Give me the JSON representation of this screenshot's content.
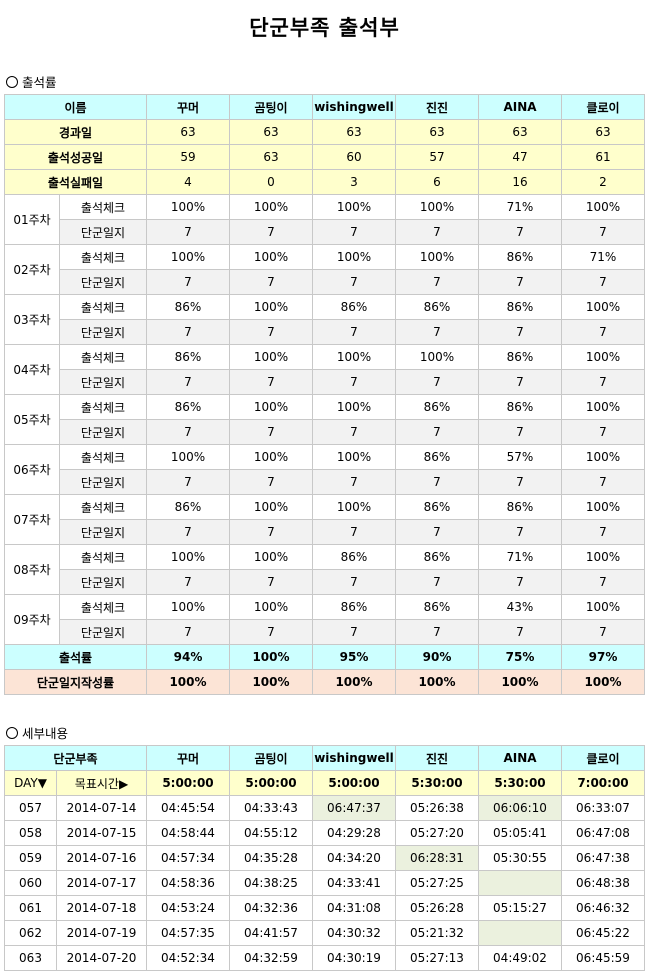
{
  "title": "단군부족 출석부",
  "section1": "출석률",
  "section2": "세부내용",
  "attendance": {
    "name_header": "이름",
    "members": [
      "꾸머",
      "곰팅이",
      "wishingwell",
      "진진",
      "AINA",
      "클로이"
    ],
    "summary": [
      {
        "label": "경과일",
        "values": [
          "63",
          "63",
          "63",
          "63",
          "63",
          "63"
        ]
      },
      {
        "label": "출석성공일",
        "values": [
          "59",
          "63",
          "60",
          "57",
          "47",
          "61"
        ]
      },
      {
        "label": "출석실패일",
        "values": [
          "4",
          "0",
          "3",
          "6",
          "16",
          "2"
        ]
      }
    ],
    "check_label": "출석체크",
    "diary_label": "단군일지",
    "weeks": [
      {
        "week": "01주차",
        "check": [
          "100%",
          "100%",
          "100%",
          "100%",
          "71%",
          "100%"
        ],
        "diary": [
          "7",
          "7",
          "7",
          "7",
          "7",
          "7"
        ]
      },
      {
        "week": "02주차",
        "check": [
          "100%",
          "100%",
          "100%",
          "100%",
          "86%",
          "71%"
        ],
        "diary": [
          "7",
          "7",
          "7",
          "7",
          "7",
          "7"
        ]
      },
      {
        "week": "03주차",
        "check": [
          "86%",
          "100%",
          "86%",
          "86%",
          "86%",
          "100%"
        ],
        "diary": [
          "7",
          "7",
          "7",
          "7",
          "7",
          "7"
        ]
      },
      {
        "week": "04주차",
        "check": [
          "86%",
          "100%",
          "100%",
          "100%",
          "86%",
          "100%"
        ],
        "diary": [
          "7",
          "7",
          "7",
          "7",
          "7",
          "7"
        ]
      },
      {
        "week": "05주차",
        "check": [
          "86%",
          "100%",
          "100%",
          "86%",
          "86%",
          "100%"
        ],
        "diary": [
          "7",
          "7",
          "7",
          "7",
          "7",
          "7"
        ]
      },
      {
        "week": "06주차",
        "check": [
          "100%",
          "100%",
          "100%",
          "86%",
          "57%",
          "100%"
        ],
        "diary": [
          "7",
          "7",
          "7",
          "7",
          "7",
          "7"
        ]
      },
      {
        "week": "07주차",
        "check": [
          "86%",
          "100%",
          "100%",
          "86%",
          "86%",
          "100%"
        ],
        "diary": [
          "7",
          "7",
          "7",
          "7",
          "7",
          "7"
        ]
      },
      {
        "week": "08주차",
        "check": [
          "100%",
          "100%",
          "86%",
          "86%",
          "71%",
          "100%"
        ],
        "diary": [
          "7",
          "7",
          "7",
          "7",
          "7",
          "7"
        ]
      },
      {
        "week": "09주차",
        "check": [
          "100%",
          "100%",
          "86%",
          "86%",
          "43%",
          "100%"
        ],
        "diary": [
          "7",
          "7",
          "7",
          "7",
          "7",
          "7"
        ]
      }
    ],
    "rate_label": "출석률",
    "rate": [
      "94%",
      "100%",
      "95%",
      "90%",
      "75%",
      "97%"
    ],
    "diary_rate_label": "단군일지작성률",
    "diary_rate": [
      "100%",
      "100%",
      "100%",
      "100%",
      "100%",
      "100%"
    ]
  },
  "details": {
    "tribe_header": "단군부족",
    "members": [
      "꾸머",
      "곰팅이",
      "wishingwell",
      "진진",
      "AINA",
      "클로이"
    ],
    "day_label": "DAY▼",
    "target_label": "목표시간▶",
    "targets": [
      "5:00:00",
      "5:00:00",
      "5:00:00",
      "5:30:00",
      "5:30:00",
      "7:00:00"
    ],
    "rows": [
      {
        "day": "057",
        "date": "2014-07-14",
        "times": [
          "04:45:54",
          "04:33:43",
          "06:47:37",
          "05:26:38",
          "06:06:10",
          "06:33:07"
        ],
        "late": [
          false,
          false,
          true,
          false,
          true,
          false
        ]
      },
      {
        "day": "058",
        "date": "2014-07-15",
        "times": [
          "04:58:44",
          "04:55:12",
          "04:29:28",
          "05:27:20",
          "05:05:41",
          "06:47:08"
        ],
        "late": [
          false,
          false,
          false,
          false,
          false,
          false
        ]
      },
      {
        "day": "059",
        "date": "2014-07-16",
        "times": [
          "04:57:34",
          "04:35:28",
          "04:34:20",
          "06:28:31",
          "05:30:55",
          "06:47:38"
        ],
        "late": [
          false,
          false,
          false,
          true,
          false,
          false
        ]
      },
      {
        "day": "060",
        "date": "2014-07-17",
        "times": [
          "04:58:36",
          "04:38:25",
          "04:33:41",
          "05:27:25",
          "",
          "06:48:38"
        ],
        "late": [
          false,
          false,
          false,
          false,
          true,
          false
        ]
      },
      {
        "day": "061",
        "date": "2014-07-18",
        "times": [
          "04:53:24",
          "04:32:36",
          "04:31:08",
          "05:26:28",
          "05:15:27",
          "06:46:32"
        ],
        "late": [
          false,
          false,
          false,
          false,
          false,
          false
        ]
      },
      {
        "day": "062",
        "date": "2014-07-19",
        "times": [
          "04:57:35",
          "04:41:57",
          "04:30:32",
          "05:21:32",
          "",
          "06:45:22"
        ],
        "late": [
          false,
          false,
          false,
          false,
          true,
          false
        ]
      },
      {
        "day": "063",
        "date": "2014-07-20",
        "times": [
          "04:52:34",
          "04:32:59",
          "04:30:19",
          "05:27:13",
          "04:49:02",
          "06:45:59"
        ],
        "late": [
          false,
          false,
          false,
          false,
          false,
          false
        ]
      }
    ]
  }
}
